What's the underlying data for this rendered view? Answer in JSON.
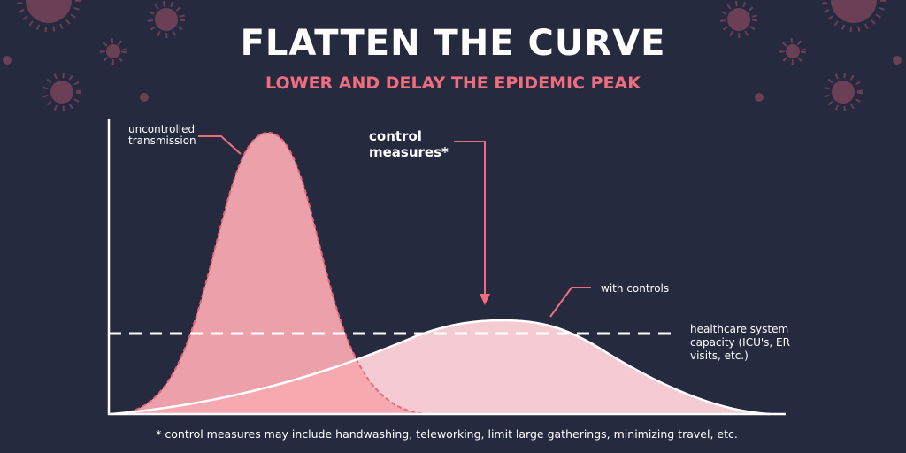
{
  "title": "FLATTEN THE CURVE",
  "subtitle": "LOWER AND DELAY THE EPIDEMIC PEAK",
  "labels": {
    "uncontrolled": [
      "uncontrolled",
      "transmission"
    ],
    "control_measures": [
      "control",
      "measures*"
    ],
    "with_controls": "with controls",
    "capacity": [
      "healthcare system",
      "capacity (ICU's, ER",
      "visits, etc.)"
    ]
  },
  "footnote": "* control measures may include handwashing, teleworking, limit large gatherings, minimizing travel, etc."
}
